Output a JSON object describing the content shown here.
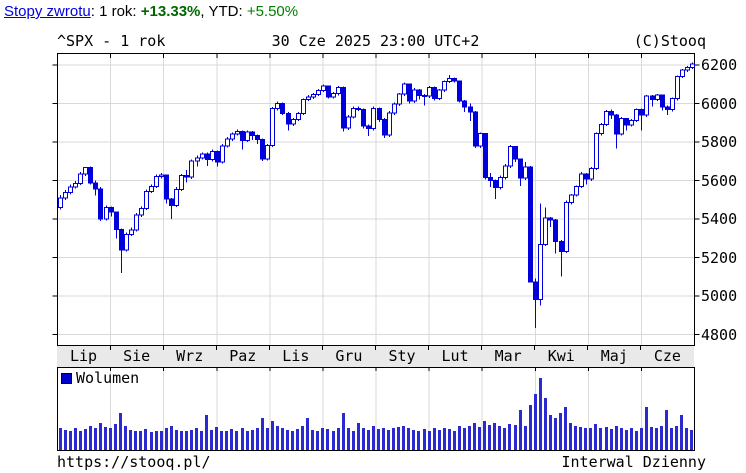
{
  "returns_bar": {
    "link_label": "Stopy zwrotu",
    "after_link": ": ",
    "period1_label": "1 rok: ",
    "period1_value": "+13.33%",
    "separator": ", ",
    "period2_label": "YTD: ",
    "period2_value": "+5.50%"
  },
  "chart_header": {
    "symbol_period": "^SPX - 1 rok",
    "timestamp": "30 Cze 2025 23:00 UTC+2",
    "copyright": "(C)Stooq"
  },
  "volume_legend": {
    "label": "Wolumen",
    "swatch_color": "#0000cc"
  },
  "footer": {
    "url": "https://stooq.pl/",
    "interval": "Interwal Dzienny"
  },
  "chart_data": {
    "type": "candlestick",
    "title": "^SPX - 1 rok",
    "timestamp": "30 Cze 2025 23:00 UTC+2",
    "x_categories": [
      "Lip",
      "Sie",
      "Wrz",
      "Paz",
      "Lis",
      "Gru",
      "Sty",
      "Lut",
      "Mar",
      "Kwi",
      "Maj",
      "Cze"
    ],
    "y_ticks": [
      6200,
      6000,
      5800,
      5600,
      5400,
      5200,
      5000,
      4800
    ],
    "ylim": [
      4746,
      6262
    ],
    "grid": true,
    "legend_position": "volume-panel-top-left",
    "colors": {
      "candle": "#0000dd",
      "grid": "#d9d9d9",
      "volume_bar": "#2a2ad0",
      "frame": "#000000",
      "band_bg": "#e9e9e9"
    },
    "candles": [
      [
        5460,
        5525,
        5450,
        5509
      ],
      [
        5509,
        5550,
        5500,
        5537
      ],
      [
        5537,
        5580,
        5528,
        5567
      ],
      [
        5567,
        5598,
        5558,
        5585
      ],
      [
        5585,
        5645,
        5576,
        5633
      ],
      [
        5633,
        5670,
        5624,
        5667
      ],
      [
        5667,
        5672,
        5578,
        5588
      ],
      [
        5588,
        5600,
        5522,
        5555
      ],
      [
        5555,
        5565,
        5390,
        5400
      ],
      [
        5400,
        5470,
        5392,
        5460
      ],
      [
        5460,
        5465,
        5412,
        5436
      ],
      [
        5436,
        5440,
        5300,
        5346
      ],
      [
        5346,
        5350,
        5119,
        5240
      ],
      [
        5240,
        5330,
        5230,
        5320
      ],
      [
        5320,
        5355,
        5311,
        5344
      ],
      [
        5344,
        5430,
        5335,
        5420
      ],
      [
        5420,
        5465,
        5411,
        5455
      ],
      [
        5455,
        5552,
        5446,
        5543
      ],
      [
        5543,
        5580,
        5534,
        5570
      ],
      [
        5570,
        5630,
        5561,
        5620
      ],
      [
        5620,
        5640,
        5611,
        5628
      ],
      [
        5628,
        5632,
        5480,
        5503
      ],
      [
        5503,
        5510,
        5400,
        5471
      ],
      [
        5471,
        5565,
        5462,
        5554
      ],
      [
        5554,
        5635,
        5545,
        5626
      ],
      [
        5626,
        5655,
        5590,
        5618
      ],
      [
        5618,
        5710,
        5609,
        5702
      ],
      [
        5702,
        5730,
        5674,
        5718
      ],
      [
        5718,
        5745,
        5709,
        5738
      ],
      [
        5738,
        5745,
        5675,
        5709
      ],
      [
        5709,
        5760,
        5700,
        5751
      ],
      [
        5751,
        5755,
        5674,
        5697
      ],
      [
        5697,
        5790,
        5688,
        5780
      ],
      [
        5780,
        5825,
        5771,
        5815
      ],
      [
        5815,
        5850,
        5806,
        5842
      ],
      [
        5842,
        5865,
        5833,
        5854
      ],
      [
        5854,
        5860,
        5762,
        5809
      ],
      [
        5809,
        5860,
        5800,
        5851
      ],
      [
        5851,
        5858,
        5810,
        5833
      ],
      [
        5833,
        5840,
        5790,
        5813
      ],
      [
        5813,
        5818,
        5702,
        5712
      ],
      [
        5712,
        5790,
        5703,
        5783
      ],
      [
        5783,
        5982,
        5774,
        5973
      ],
      [
        5973,
        6010,
        5964,
        6001
      ],
      [
        6001,
        6005,
        5940,
        5949
      ],
      [
        5949,
        5955,
        5860,
        5893
      ],
      [
        5893,
        5925,
        5884,
        5917
      ],
      [
        5917,
        5955,
        5908,
        5949
      ],
      [
        5949,
        6025,
        5940,
        6021
      ],
      [
        6021,
        6044,
        6012,
        6033
      ],
      [
        6033,
        6055,
        6024,
        6047
      ],
      [
        6047,
        6075,
        6038,
        6068
      ],
      [
        6068,
        6099,
        6059,
        6090
      ],
      [
        6090,
        6092,
        6025,
        6035
      ],
      [
        6035,
        6060,
        6026,
        6051
      ],
      [
        6051,
        6090,
        6042,
        6084
      ],
      [
        6084,
        6088,
        5855,
        5872
      ],
      [
        5872,
        5940,
        5863,
        5931
      ],
      [
        5931,
        5985,
        5922,
        5975
      ],
      [
        5975,
        5985,
        5960,
        5970
      ],
      [
        5970,
        5975,
        5870,
        5882
      ],
      [
        5882,
        5890,
        5830,
        5869
      ],
      [
        5869,
        5985,
        5860,
        5975
      ],
      [
        5975,
        5980,
        5905,
        5918
      ],
      [
        5918,
        5925,
        5820,
        5836
      ],
      [
        5836,
        5960,
        5827,
        5950
      ],
      [
        5950,
        6005,
        5941,
        5997
      ],
      [
        5997,
        6055,
        5988,
        6049
      ],
      [
        6049,
        6110,
        6040,
        6101
      ],
      [
        6101,
        6105,
        6000,
        6012
      ],
      [
        6012,
        6080,
        6003,
        6071
      ],
      [
        6071,
        6075,
        6020,
        6041
      ],
      [
        6041,
        6050,
        5990,
        6038
      ],
      [
        6038,
        6090,
        6029,
        6083
      ],
      [
        6083,
        6088,
        6015,
        6026
      ],
      [
        6026,
        6075,
        6017,
        6069
      ],
      [
        6069,
        6120,
        6060,
        6115
      ],
      [
        6115,
        6147,
        6106,
        6130
      ],
      [
        6130,
        6135,
        6110,
        6118
      ],
      [
        6118,
        6120,
        6005,
        6013
      ],
      [
        6013,
        6018,
        5955,
        5983
      ],
      [
        5983,
        6000,
        5908,
        5955
      ],
      [
        5955,
        5960,
        5770,
        5778
      ],
      [
        5778,
        5850,
        5769,
        5843
      ],
      [
        5843,
        5845,
        5605,
        5615
      ],
      [
        5615,
        5640,
        5565,
        5600
      ],
      [
        5600,
        5605,
        5505,
        5563
      ],
      [
        5563,
        5625,
        5554,
        5615
      ],
      [
        5615,
        5685,
        5606,
        5675
      ],
      [
        5675,
        5785,
        5666,
        5777
      ],
      [
        5777,
        5780,
        5695,
        5712
      ],
      [
        5712,
        5715,
        5572,
        5612
      ],
      [
        5612,
        5695,
        5603,
        5671
      ],
      [
        5671,
        5675,
        5069,
        5074
      ],
      [
        5074,
        5090,
        4835,
        4983
      ],
      [
        4983,
        5481,
        4950,
        5268
      ],
      [
        5268,
        5460,
        5259,
        5406
      ],
      [
        5406,
        5410,
        5358,
        5396
      ],
      [
        5396,
        5400,
        5220,
        5283
      ],
      [
        5283,
        5290,
        5101,
        5232
      ],
      [
        5232,
        5495,
        5223,
        5485
      ],
      [
        5485,
        5530,
        5476,
        5525
      ],
      [
        5525,
        5575,
        5516,
        5569
      ],
      [
        5569,
        5645,
        5560,
        5635
      ],
      [
        5635,
        5640,
        5578,
        5607
      ],
      [
        5607,
        5670,
        5598,
        5663
      ],
      [
        5663,
        5850,
        5654,
        5844
      ],
      [
        5844,
        5900,
        5835,
        5892
      ],
      [
        5892,
        5965,
        5883,
        5958
      ],
      [
        5958,
        5968,
        5920,
        5940
      ],
      [
        5940,
        5945,
        5767,
        5842
      ],
      [
        5842,
        5930,
        5833,
        5922
      ],
      [
        5922,
        5925,
        5860,
        5889
      ],
      [
        5889,
        5920,
        5880,
        5912
      ],
      [
        5912,
        5975,
        5903,
        5970
      ],
      [
        5970,
        5975,
        5860,
        5939
      ],
      [
        5939,
        6045,
        5930,
        6039
      ],
      [
        6039,
        6043,
        5985,
        6022
      ],
      [
        6022,
        6050,
        6013,
        6045
      ],
      [
        6045,
        6048,
        5963,
        5981
      ],
      [
        5981,
        5990,
        5940,
        5968
      ],
      [
        5968,
        6030,
        5959,
        6025
      ],
      [
        6025,
        6145,
        6016,
        6141
      ],
      [
        6141,
        6180,
        6132,
        6173
      ],
      [
        6173,
        6195,
        6164,
        6187
      ],
      [
        6187,
        6212,
        6178,
        6205
      ]
    ],
    "volume_rel": [
      0.3,
      0.28,
      0.26,
      0.31,
      0.27,
      0.29,
      0.33,
      0.3,
      0.38,
      0.32,
      0.3,
      0.36,
      0.52,
      0.34,
      0.28,
      0.27,
      0.26,
      0.29,
      0.25,
      0.27,
      0.26,
      0.3,
      0.33,
      0.28,
      0.27,
      0.26,
      0.28,
      0.3,
      0.27,
      0.48,
      0.28,
      0.32,
      0.27,
      0.26,
      0.29,
      0.27,
      0.31,
      0.26,
      0.28,
      0.3,
      0.45,
      0.3,
      0.4,
      0.34,
      0.3,
      0.28,
      0.26,
      0.29,
      0.33,
      0.44,
      0.28,
      0.27,
      0.3,
      0.29,
      0.27,
      0.31,
      0.52,
      0.3,
      0.26,
      0.38,
      0.3,
      0.28,
      0.33,
      0.29,
      0.31,
      0.28,
      0.3,
      0.32,
      0.34,
      0.31,
      0.28,
      0.26,
      0.29,
      0.27,
      0.3,
      0.28,
      0.31,
      0.29,
      0.27,
      0.33,
      0.31,
      0.34,
      0.38,
      0.32,
      0.4,
      0.35,
      0.37,
      0.33,
      0.31,
      0.36,
      0.35,
      0.55,
      0.34,
      0.62,
      0.78,
      1.0,
      0.72,
      0.48,
      0.45,
      0.52,
      0.6,
      0.38,
      0.34,
      0.32,
      0.3,
      0.31,
      0.36,
      0.3,
      0.32,
      0.29,
      0.34,
      0.3,
      0.28,
      0.31,
      0.27,
      0.3,
      0.6,
      0.32,
      0.3,
      0.33,
      0.55,
      0.3,
      0.34,
      0.48,
      0.3,
      0.28
    ]
  }
}
